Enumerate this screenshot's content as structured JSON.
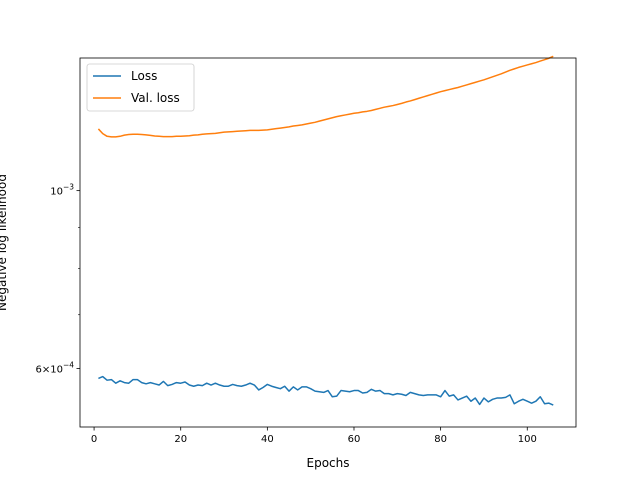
{
  "chart_data": {
    "type": "line",
    "title": "",
    "xlabel": "Epochs",
    "ylabel": "Negative log likelihood",
    "y_scale": "log",
    "xlim": [
      -3.25,
      111.25
    ],
    "ylim": [
      0.000507,
      0.001464
    ],
    "x_ticks": [
      0,
      20,
      40,
      60,
      80,
      100
    ],
    "x_tick_labels": [
      "0",
      "20",
      "40",
      "60",
      "80",
      "100"
    ],
    "y_ticks": [
      0.001,
      0.0006
    ],
    "y_tick_labels": [
      {
        "base": "10",
        "exp": "−3"
      },
      {
        "base": "6×10",
        "exp": "−4"
      }
    ],
    "y_minor_ticks": [
      0.0007,
      0.0008,
      0.0009
    ],
    "grid": false,
    "legend_position": "top-left",
    "series": [
      {
        "name": "Loss",
        "color": "#1f77b4",
        "x": [
          1,
          2,
          3,
          4,
          5,
          6,
          7,
          8,
          9,
          10,
          11,
          12,
          13,
          14,
          15,
          16,
          17,
          18,
          19,
          20,
          21,
          22,
          23,
          24,
          25,
          26,
          27,
          28,
          29,
          30,
          31,
          32,
          33,
          34,
          35,
          36,
          37,
          38,
          39,
          40,
          41,
          42,
          43,
          44,
          45,
          46,
          47,
          48,
          49,
          50,
          51,
          52,
          53,
          54,
          55,
          56,
          57,
          58,
          59,
          60,
          61,
          62,
          63,
          64,
          65,
          66,
          67,
          68,
          69,
          70,
          71,
          72,
          73,
          74,
          75,
          76,
          77,
          78,
          79,
          80,
          81,
          82,
          83,
          84,
          85,
          86,
          87,
          88,
          89,
          90,
          91,
          92,
          93,
          94,
          95,
          96,
          97,
          98,
          99,
          100,
          101,
          102,
          103,
          104,
          105,
          106
        ],
        "y": [
          0.000583,
          0.000586,
          0.00058,
          0.000581,
          0.000575,
          0.000579,
          0.000576,
          0.000575,
          0.000581,
          0.000581,
          0.000576,
          0.000574,
          0.000576,
          0.000574,
          0.000572,
          0.000578,
          0.000571,
          0.000573,
          0.000576,
          0.000575,
          0.000577,
          0.000572,
          0.00057,
          0.000572,
          0.000571,
          0.000575,
          0.000572,
          0.000575,
          0.000572,
          0.00057,
          0.00057,
          0.000573,
          0.000571,
          0.00057,
          0.000572,
          0.000575,
          0.000572,
          0.000564,
          0.000568,
          0.000573,
          0.00057,
          0.000568,
          0.000566,
          0.00057,
          0.000562,
          0.000569,
          0.000564,
          0.000569,
          0.000569,
          0.000566,
          0.000562,
          0.000561,
          0.00056,
          0.000563,
          0.000553,
          0.000554,
          0.000563,
          0.000562,
          0.000561,
          0.000563,
          0.000563,
          0.000559,
          0.00056,
          0.000565,
          0.000562,
          0.000563,
          0.000558,
          0.000558,
          0.000556,
          0.000558,
          0.000557,
          0.000555,
          0.00056,
          0.000558,
          0.000556,
          0.000555,
          0.000556,
          0.000556,
          0.000556,
          0.000553,
          0.000563,
          0.000554,
          0.000556,
          0.000548,
          0.000551,
          0.000554,
          0.000546,
          0.000551,
          0.000541,
          0.000551,
          0.000545,
          0.000549,
          0.000551,
          0.000551,
          0.000552,
          0.000556,
          0.000542,
          0.000546,
          0.000549,
          0.000546,
          0.000543,
          0.000546,
          0.000553,
          0.000542,
          0.000543,
          0.00054
        ]
      },
      {
        "name": "Val. loss",
        "color": "#ff7f0e",
        "x": [
          1,
          2,
          3,
          4,
          5,
          6,
          7,
          8,
          9,
          10,
          11,
          12,
          13,
          14,
          15,
          16,
          17,
          18,
          19,
          20,
          21,
          22,
          23,
          24,
          25,
          26,
          27,
          28,
          29,
          30,
          31,
          32,
          33,
          34,
          35,
          36,
          37,
          38,
          39,
          40,
          41,
          42,
          43,
          44,
          45,
          46,
          47,
          48,
          49,
          50,
          51,
          52,
          53,
          54,
          55,
          56,
          57,
          58,
          59,
          60,
          61,
          62,
          63,
          64,
          65,
          66,
          67,
          68,
          69,
          70,
          71,
          72,
          73,
          74,
          75,
          76,
          77,
          78,
          79,
          80,
          81,
          82,
          83,
          84,
          85,
          86,
          87,
          88,
          89,
          90,
          91,
          92,
          93,
          94,
          95,
          96,
          97,
          98,
          99,
          100,
          101,
          102,
          103,
          104,
          105,
          106
        ],
        "y": [
          0.001194,
          0.001178,
          0.001169,
          0.001167,
          0.001167,
          0.001169,
          0.001173,
          0.001175,
          0.001176,
          0.001176,
          0.001175,
          0.001174,
          0.001172,
          0.00117,
          0.001169,
          0.001168,
          0.001168,
          0.001168,
          0.001169,
          0.001169,
          0.00117,
          0.001171,
          0.001173,
          0.001174,
          0.001176,
          0.001177,
          0.001178,
          0.001179,
          0.001181,
          0.001183,
          0.001184,
          0.001185,
          0.001186,
          0.001187,
          0.001188,
          0.001189,
          0.001189,
          0.001189,
          0.00119,
          0.001191,
          0.001193,
          0.001195,
          0.001197,
          0.001199,
          0.001201,
          0.001204,
          0.001206,
          0.001208,
          0.001211,
          0.001214,
          0.001217,
          0.001221,
          0.001225,
          0.001229,
          0.001233,
          0.001237,
          0.00124,
          0.001243,
          0.001246,
          0.001249,
          0.001251,
          0.001254,
          0.001256,
          0.001259,
          0.001263,
          0.001267,
          0.001271,
          0.001274,
          0.001277,
          0.001281,
          0.001285,
          0.00129,
          0.001294,
          0.001299,
          0.001304,
          0.001309,
          0.001314,
          0.001319,
          0.001324,
          0.001329,
          0.001333,
          0.001337,
          0.001341,
          0.001345,
          0.00135,
          0.001355,
          0.00136,
          0.001365,
          0.00137,
          0.001375,
          0.001381,
          0.001387,
          0.001393,
          0.001399,
          0.001406,
          0.001413,
          0.001419,
          0.001425,
          0.00143,
          0.001435,
          0.00144,
          0.001445,
          0.001451,
          0.001457,
          0.001463,
          0.001471
        ]
      }
    ]
  }
}
